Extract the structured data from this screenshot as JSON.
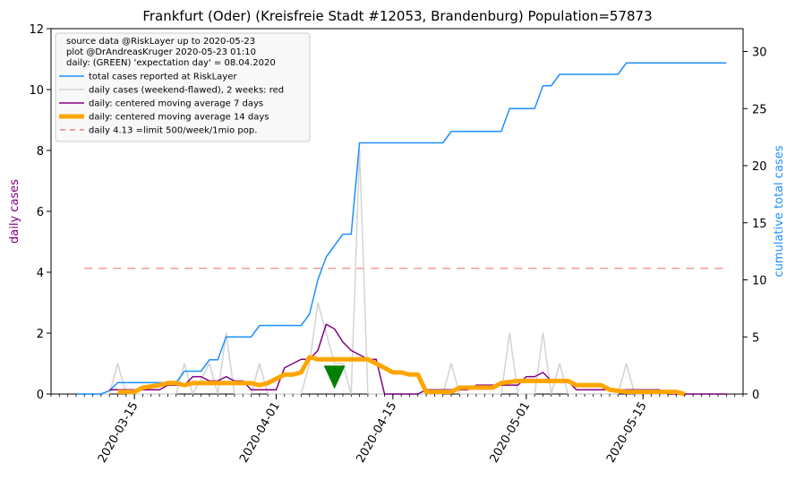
{
  "chart_data": {
    "type": "line",
    "title": "Frankfurt (Oder) (Kreisfreie Stadt #12053, Brandenburg) Population=57873",
    "ylabel_left": "daily cases",
    "ylabel_right": "cumulative total cases",
    "ylabel_left_color": "#800080",
    "ylabel_right_color": "#1E90FF",
    "x_start_date": "2020-03-05",
    "x_end_date": "2020-05-27",
    "xticks": [
      "2020-03-15",
      "2020-04-01",
      "2020-04-15",
      "2020-05-01",
      "2020-05-15"
    ],
    "ylim_left": [
      0,
      12
    ],
    "yticks_left": [
      "0",
      "2",
      "4",
      "6",
      "8",
      "10",
      "12"
    ],
    "ylim_right": [
      0,
      32
    ],
    "yticks_right": [
      "0",
      "5",
      "10",
      "15",
      "20",
      "25",
      "30"
    ],
    "legend_notes": [
      "source data @RiskLayer up to 2020-05-23",
      "plot @DrAndreasKruger 2020-05-23 01:10",
      "daily: (GREEN) 'expectation day' = 08.04.2020"
    ],
    "legend_placement": "upper-left",
    "expectation_day": "2020-04-08",
    "expectation_marker_y": 0.55,
    "series": [
      {
        "name": "total cases reported at RiskLayer",
        "axis": "right",
        "color": "#1E90FF",
        "points": [
          [
            "2020-03-08",
            0
          ],
          [
            "2020-03-11",
            0
          ],
          [
            "2020-03-12",
            0.3
          ],
          [
            "2020-03-13",
            1
          ],
          [
            "2020-03-20",
            1
          ],
          [
            "2020-03-21",
            2
          ],
          [
            "2020-03-23",
            2
          ],
          [
            "2020-03-24",
            3
          ],
          [
            "2020-03-25",
            3
          ],
          [
            "2020-03-26",
            5
          ],
          [
            "2020-03-29",
            5
          ],
          [
            "2020-03-30",
            6
          ],
          [
            "2020-04-04",
            6
          ],
          [
            "2020-04-05",
            7
          ],
          [
            "2020-04-06",
            10
          ],
          [
            "2020-04-07",
            12
          ],
          [
            "2020-04-09",
            14
          ],
          [
            "2020-04-10",
            14
          ],
          [
            "2020-04-11",
            22
          ],
          [
            "2020-04-21",
            22
          ],
          [
            "2020-04-22",
            23
          ],
          [
            "2020-04-28",
            23
          ],
          [
            "2020-04-29",
            25
          ],
          [
            "2020-05-02",
            25
          ],
          [
            "2020-05-03",
            27
          ],
          [
            "2020-05-04",
            27
          ],
          [
            "2020-05-05",
            28
          ],
          [
            "2020-05-12",
            28
          ],
          [
            "2020-05-13",
            29
          ],
          [
            "2020-05-25",
            29
          ]
        ]
      },
      {
        "name": "daily cases (weekend-flawed), 2 weeks: red",
        "axis": "left",
        "color": "#D3D3D3",
        "points": [
          [
            "2020-03-08",
            0
          ],
          [
            "2020-03-11",
            0
          ],
          [
            "2020-03-12",
            0
          ],
          [
            "2020-03-13",
            1
          ],
          [
            "2020-03-14",
            0
          ],
          [
            "2020-03-20",
            0
          ],
          [
            "2020-03-21",
            1
          ],
          [
            "2020-03-22",
            0
          ],
          [
            "2020-03-24",
            1
          ],
          [
            "2020-03-25",
            0
          ],
          [
            "2020-03-26",
            2
          ],
          [
            "2020-03-27",
            0
          ],
          [
            "2020-03-29",
            0
          ],
          [
            "2020-03-30",
            1
          ],
          [
            "2020-03-31",
            0
          ],
          [
            "2020-04-04",
            0
          ],
          [
            "2020-04-05",
            1
          ],
          [
            "2020-04-06",
            3
          ],
          [
            "2020-04-07",
            2
          ],
          [
            "2020-04-08",
            1
          ],
          [
            "2020-04-09",
            1
          ],
          [
            "2020-04-10",
            0
          ],
          [
            "2020-04-11",
            8
          ],
          [
            "2020-04-12",
            0
          ],
          [
            "2020-04-21",
            0
          ],
          [
            "2020-04-22",
            1
          ],
          [
            "2020-04-23",
            0
          ],
          [
            "2020-04-28",
            0
          ],
          [
            "2020-04-29",
            2
          ],
          [
            "2020-04-30",
            0
          ],
          [
            "2020-05-02",
            0
          ],
          [
            "2020-05-03",
            2
          ],
          [
            "2020-05-04",
            0
          ],
          [
            "2020-05-05",
            1
          ],
          [
            "2020-05-06",
            0
          ],
          [
            "2020-05-12",
            0
          ],
          [
            "2020-05-13",
            1
          ],
          [
            "2020-05-14",
            0
          ],
          [
            "2020-05-25",
            0
          ]
        ]
      },
      {
        "name": "daily: centered moving average 7 days",
        "axis": "left",
        "color": "#800080",
        "points": [
          [
            "2020-03-12",
            0.14
          ],
          [
            "2020-03-18",
            0.14
          ],
          [
            "2020-03-19",
            0.29
          ],
          [
            "2020-03-20",
            0.29
          ],
          [
            "2020-03-21",
            0.29
          ],
          [
            "2020-03-22",
            0.57
          ],
          [
            "2020-03-23",
            0.57
          ],
          [
            "2020-03-24",
            0.43
          ],
          [
            "2020-03-25",
            0.43
          ],
          [
            "2020-03-26",
            0.57
          ],
          [
            "2020-03-27",
            0.43
          ],
          [
            "2020-03-28",
            0.43
          ],
          [
            "2020-03-29",
            0.14
          ],
          [
            "2020-04-01",
            0.14
          ],
          [
            "2020-04-02",
            0.86
          ],
          [
            "2020-04-03",
            1.0
          ],
          [
            "2020-04-04",
            1.14
          ],
          [
            "2020-04-05",
            1.14
          ],
          [
            "2020-04-06",
            1.43
          ],
          [
            "2020-04-07",
            2.29
          ],
          [
            "2020-04-08",
            2.14
          ],
          [
            "2020-04-09",
            1.71
          ],
          [
            "2020-04-10",
            1.43
          ],
          [
            "2020-04-11",
            1.29
          ],
          [
            "2020-04-12",
            1.14
          ],
          [
            "2020-04-13",
            1.14
          ],
          [
            "2020-04-14",
            0
          ],
          [
            "2020-04-18",
            0
          ],
          [
            "2020-04-19",
            0.14
          ],
          [
            "2020-04-24",
            0.14
          ],
          [
            "2020-04-25",
            0.29
          ],
          [
            "2020-04-30",
            0.29
          ],
          [
            "2020-05-01",
            0.57
          ],
          [
            "2020-05-02",
            0.57
          ],
          [
            "2020-05-03",
            0.71
          ],
          [
            "2020-05-04",
            0.43
          ],
          [
            "2020-05-06",
            0.43
          ],
          [
            "2020-05-07",
            0.14
          ],
          [
            "2020-05-12",
            0.14
          ],
          [
            "2020-05-17",
            0.14
          ],
          [
            "2020-05-18",
            0
          ],
          [
            "2020-05-25",
            0
          ]
        ]
      },
      {
        "name": "daily: centered moving average 14 days",
        "axis": "left",
        "color": "#FFA500",
        "points": [
          [
            "2020-03-13",
            0.07
          ],
          [
            "2020-03-15",
            0.07
          ],
          [
            "2020-03-16",
            0.21
          ],
          [
            "2020-03-18",
            0.29
          ],
          [
            "2020-03-19",
            0.36
          ],
          [
            "2020-03-20",
            0.36
          ],
          [
            "2020-03-21",
            0.29
          ],
          [
            "2020-03-22",
            0.36
          ],
          [
            "2020-03-29",
            0.36
          ],
          [
            "2020-03-30",
            0.29
          ],
          [
            "2020-03-31",
            0.36
          ],
          [
            "2020-04-01",
            0.5
          ],
          [
            "2020-04-02",
            0.64
          ],
          [
            "2020-04-03",
            0.64
          ],
          [
            "2020-04-04",
            0.71
          ],
          [
            "2020-04-05",
            1.21
          ],
          [
            "2020-04-06",
            1.14
          ],
          [
            "2020-04-12",
            1.14
          ],
          [
            "2020-04-13",
            1.0
          ],
          [
            "2020-04-14",
            0.86
          ],
          [
            "2020-04-15",
            0.71
          ],
          [
            "2020-04-16",
            0.71
          ],
          [
            "2020-04-17",
            0.64
          ],
          [
            "2020-04-18",
            0.64
          ],
          [
            "2020-04-19",
            0.07
          ],
          [
            "2020-04-22",
            0.07
          ],
          [
            "2020-04-23",
            0.21
          ],
          [
            "2020-04-27",
            0.21
          ],
          [
            "2020-04-28",
            0.36
          ],
          [
            "2020-04-30",
            0.43
          ],
          [
            "2020-05-05",
            0.43
          ],
          [
            "2020-05-06",
            0.43
          ],
          [
            "2020-05-07",
            0.29
          ],
          [
            "2020-05-10",
            0.29
          ],
          [
            "2020-05-11",
            0.14
          ],
          [
            "2020-05-13",
            0.07
          ],
          [
            "2020-05-19",
            0.07
          ],
          [
            "2020-05-20",
            0
          ]
        ]
      },
      {
        "name": "daily 4.13 =limit 500/week/1mio pop.",
        "axis": "left",
        "color": "#F08080",
        "style": "dashed",
        "points": [
          [
            "2020-03-09",
            4.13
          ],
          [
            "2020-05-25",
            4.13
          ]
        ]
      }
    ]
  }
}
